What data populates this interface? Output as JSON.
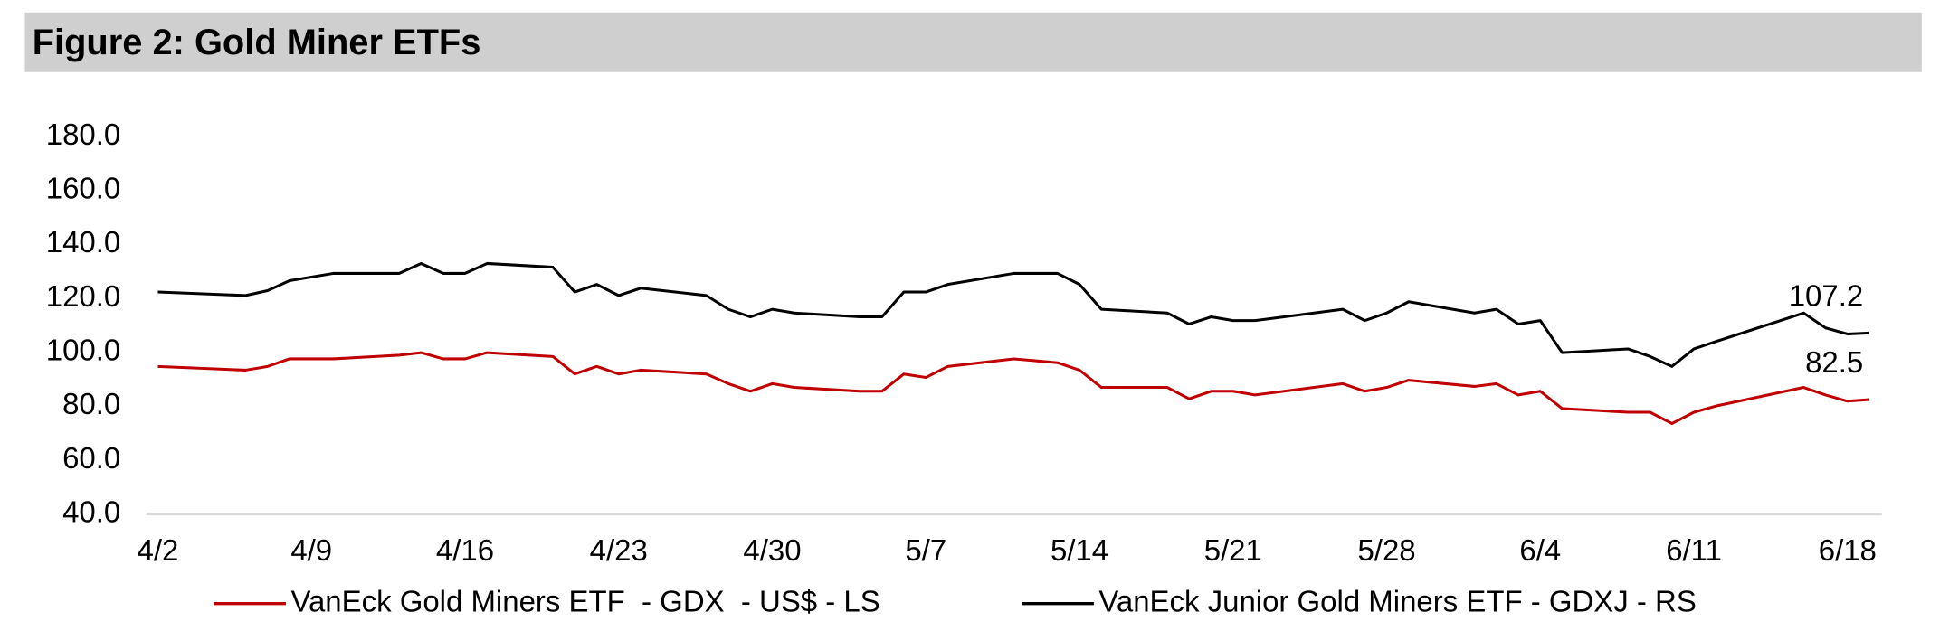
{
  "chart_data": {
    "type": "line",
    "title": "Figure 2: Gold Miner ETFs",
    "x": [
      "4/2",
      "4/6",
      "4/7",
      "4/8",
      "4/10",
      "4/13",
      "4/14",
      "4/15",
      "4/16",
      "4/17",
      "4/20",
      "4/21",
      "4/22",
      "4/23",
      "4/24",
      "4/27",
      "4/28",
      "4/29",
      "4/30",
      "5/1",
      "5/4",
      "5/5",
      "5/6",
      "5/7",
      "5/8",
      "5/11",
      "5/13",
      "5/14",
      "5/15",
      "5/18",
      "5/19",
      "5/20",
      "5/21",
      "5/22",
      "5/26",
      "5/27",
      "5/28",
      "5/29",
      "6/1",
      "6/2",
      "6/3",
      "6/4",
      "6/5",
      "6/8",
      "6/9",
      "6/10",
      "6/11",
      "6/12",
      "6/16",
      "6/17",
      "6/18",
      "6/19"
    ],
    "xlim": [
      "4/2",
      "6/19"
    ],
    "xticks": [
      "4/2",
      "4/9",
      "4/16",
      "4/23",
      "4/30",
      "5/7",
      "5/14",
      "5/21",
      "5/28",
      "6/4",
      "6/11",
      "6/18"
    ],
    "ylim": [
      40,
      180
    ],
    "yticks": [
      {
        "value": 40,
        "label": "40.0"
      },
      {
        "value": 60,
        "label": "60.0"
      },
      {
        "value": 80,
        "label": "80.0"
      },
      {
        "value": 100,
        "label": "100.0"
      },
      {
        "value": 120,
        "label": "120.0"
      },
      {
        "value": 140,
        "label": "140.0"
      },
      {
        "value": 160,
        "label": "160.0"
      },
      {
        "value": 180,
        "label": "180.0"
      }
    ],
    "legend": "bottom",
    "series": [
      {
        "name": "VanEck Gold Miners ETF  - GDX  - US$ - LS",
        "color": "#c00000",
        "end_label": "82.5",
        "values": [
          94.8,
          93.4,
          94.8,
          97.6,
          97.6,
          99.0,
          99.9,
          97.6,
          97.6,
          99.9,
          98.5,
          92.0,
          94.8,
          92.0,
          93.4,
          92.0,
          88.4,
          85.6,
          88.4,
          87.0,
          85.6,
          85.6,
          92.0,
          90.7,
          94.8,
          97.6,
          96.2,
          93.4,
          87.0,
          87.0,
          82.8,
          85.6,
          85.6,
          84.2,
          88.4,
          85.6,
          87.0,
          89.7,
          87.4,
          88.4,
          84.2,
          85.6,
          79.2,
          77.8,
          77.8,
          73.6,
          77.8,
          80.1,
          87.0,
          84.2,
          81.9,
          82.5
        ]
      },
      {
        "name": "VanEck Junior Gold Miners ETF - GDXJ - RS",
        "color": "#000000",
        "end_label": "107.2",
        "values": [
          122.4,
          121.1,
          122.9,
          126.6,
          129.3,
          129.3,
          133.0,
          129.3,
          129.3,
          133.0,
          131.6,
          122.4,
          125.2,
          121.1,
          123.8,
          121.1,
          116.0,
          113.2,
          116.0,
          114.6,
          113.2,
          113.2,
          122.4,
          122.4,
          125.2,
          129.3,
          129.3,
          125.2,
          116.0,
          114.6,
          110.5,
          113.2,
          111.8,
          111.8,
          116.0,
          111.8,
          114.6,
          118.8,
          114.6,
          116.0,
          110.5,
          111.8,
          99.9,
          101.3,
          98.5,
          94.8,
          101.3,
          104.0,
          114.6,
          109.1,
          106.8,
          107.2
        ]
      }
    ]
  }
}
